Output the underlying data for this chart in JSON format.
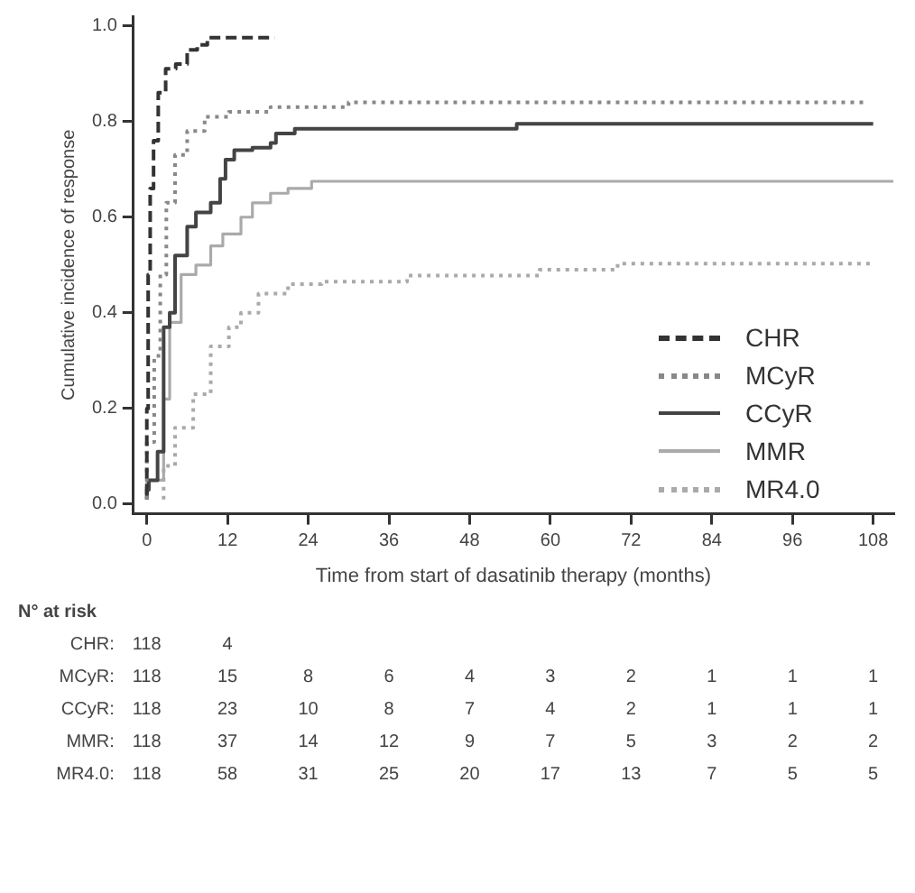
{
  "chart_data": {
    "type": "step",
    "xlabel": "Time from start of dasatinib therapy (months)",
    "ylabel": "Cumulative incidence of response",
    "xlim": [
      -2,
      111
    ],
    "ylim": [
      -0.02,
      1.02
    ],
    "xticks": [
      0,
      12,
      24,
      36,
      48,
      60,
      72,
      84,
      96,
      108
    ],
    "yticks": [
      {
        "value": 0,
        "label": "0.0"
      },
      {
        "value": 0.2,
        "label": "0.2"
      },
      {
        "value": 0.4,
        "label": "0.4"
      },
      {
        "value": 0.6,
        "label": "0.6"
      },
      {
        "value": 0.8,
        "label": "0.8"
      },
      {
        "value": 1,
        "label": "1.0"
      }
    ],
    "grid": false,
    "legend": "bottom right",
    "marker": "none",
    "series": [
      {
        "name": "CHR",
        "color": "#333333",
        "line_style": "dashed",
        "x": [
          0,
          0.2,
          0.5,
          1,
          1.7,
          2.8,
          4.3,
          6,
          7.5,
          9,
          11,
          19
        ],
        "values": [
          0.02,
          0.2,
          0.48,
          0.66,
          0.76,
          0.86,
          0.91,
          0.92,
          0.95,
          0.96,
          0.975,
          0.975
        ]
      },
      {
        "name": "MCyR",
        "color": "#888888",
        "line_style": "dotted",
        "x": [
          0,
          1.1,
          2,
          2.9,
          4.2,
          6,
          8.6,
          12.2,
          18.4,
          30,
          60,
          107
        ],
        "values": [
          0.01,
          0.13,
          0.31,
          0.48,
          0.63,
          0.73,
          0.78,
          0.81,
          0.82,
          0.83,
          0.84,
          0.84
        ]
      },
      {
        "name": "CCyR",
        "color": "#444444",
        "line_style": "solid",
        "x": [
          0,
          0.3,
          1.6,
          2.5,
          3.4,
          4.2,
          6,
          7.3,
          9.5,
          10.9,
          11.7,
          13,
          15.7,
          18.4,
          19.2,
          22,
          55,
          60,
          108
        ],
        "values": [
          0.01,
          0.03,
          0.05,
          0.11,
          0.37,
          0.4,
          0.52,
          0.58,
          0.61,
          0.63,
          0.68,
          0.72,
          0.74,
          0.745,
          0.755,
          0.775,
          0.785,
          0.795,
          0.795
        ]
      },
      {
        "name": "MMR",
        "color": "#aaaaaa",
        "line_style": "solid",
        "x": [
          0,
          2.5,
          3.4,
          5.1,
          7.3,
          9.5,
          11.3,
          14,
          15.7,
          18.4,
          21,
          24.5,
          31.6,
          111
        ],
        "values": [
          0.01,
          0.05,
          0.22,
          0.38,
          0.48,
          0.5,
          0.54,
          0.565,
          0.6,
          0.63,
          0.65,
          0.66,
          0.675,
          0.675
        ]
      },
      {
        "name": "MR4.0",
        "color": "#aaaaaa",
        "line_style": "dotted",
        "x": [
          2.5,
          4.2,
          6.9,
          9.5,
          12.2,
          14,
          16.6,
          21,
          26,
          38.7,
          58.4,
          70,
          73.5,
          108
        ],
        "values": [
          0.01,
          0.08,
          0.16,
          0.23,
          0.33,
          0.37,
          0.4,
          0.44,
          0.46,
          0.465,
          0.478,
          0.49,
          0.503,
          0.503
        ]
      }
    ],
    "annotations": [
      "N° at risk",
      "CHR: 118 4",
      "MCyR: 118 15 8 6 4 3 2 1 1 1",
      "CCyR: 118 23 10 8 7 4 2 1 1 1",
      "MMR: 118 37 14 12 9 7 5 3 2 2",
      "MR4.0: 118 58 31 25 20 17 13 7 5 5"
    ]
  }
}
